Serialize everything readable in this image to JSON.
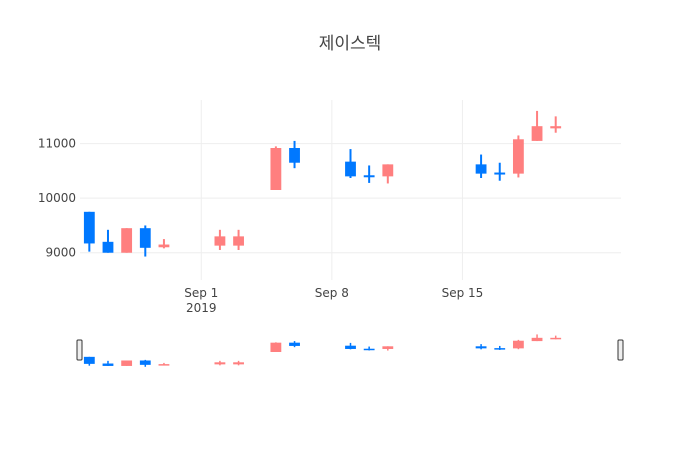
{
  "chart_data": {
    "type": "candlestick",
    "title": "제이스텍",
    "xlabel": "",
    "ylabel": "",
    "x_tick_labels": [
      {
        "label": "Sep 1",
        "sub": "2019",
        "date": "2019-09-01"
      },
      {
        "label": "Sep 8",
        "sub": "",
        "date": "2019-09-08"
      },
      {
        "label": "Sep 15",
        "sub": "",
        "date": "2019-09-15"
      }
    ],
    "y_tick_labels": [
      "9000",
      "10000",
      "11000"
    ],
    "y_ticks": [
      9000,
      10000,
      11000
    ],
    "ylim": [
      8500,
      11800
    ],
    "xlim": [
      "2019-08-25T12:00",
      "2019-09-23T12:00"
    ],
    "colors": {
      "increasing": "#ff7f7f",
      "decreasing": "#0078ff",
      "grid": "#eeeeee"
    },
    "range_slider": true,
    "candles": [
      {
        "date": "2019-08-26",
        "open": 9750,
        "high": 9750,
        "low": 9020,
        "close": 9170
      },
      {
        "date": "2019-08-27",
        "open": 9200,
        "high": 9420,
        "low": 9000,
        "close": 9000
      },
      {
        "date": "2019-08-28",
        "open": 9000,
        "high": 9450,
        "low": 9000,
        "close": 9450
      },
      {
        "date": "2019-08-29",
        "open": 9450,
        "high": 9500,
        "low": 8930,
        "close": 9090
      },
      {
        "date": "2019-08-30",
        "open": 9100,
        "high": 9250,
        "low": 9080,
        "close": 9150
      },
      {
        "date": "2019-09-02",
        "open": 9130,
        "high": 9420,
        "low": 9050,
        "close": 9300
      },
      {
        "date": "2019-09-03",
        "open": 9130,
        "high": 9420,
        "low": 9050,
        "close": 9300
      },
      {
        "date": "2019-09-05",
        "open": 10150,
        "high": 10950,
        "low": 10150,
        "close": 10920
      },
      {
        "date": "2019-09-06",
        "open": 10920,
        "high": 11050,
        "low": 10550,
        "close": 10650
      },
      {
        "date": "2019-09-09",
        "open": 10670,
        "high": 10900,
        "low": 10370,
        "close": 10400
      },
      {
        "date": "2019-09-10",
        "open": 10420,
        "high": 10600,
        "low": 10280,
        "close": 10400
      },
      {
        "date": "2019-09-11",
        "open": 10400,
        "high": 10620,
        "low": 10270,
        "close": 10620
      },
      {
        "date": "2019-09-16",
        "open": 10620,
        "high": 10800,
        "low": 10370,
        "close": 10450
      },
      {
        "date": "2019-09-17",
        "open": 10470,
        "high": 10650,
        "low": 10320,
        "close": 10450
      },
      {
        "date": "2019-09-18",
        "open": 10450,
        "high": 11150,
        "low": 10380,
        "close": 11080
      },
      {
        "date": "2019-09-19",
        "open": 11050,
        "high": 11600,
        "low": 11050,
        "close": 11320
      },
      {
        "date": "2019-09-20",
        "open": 11280,
        "high": 11500,
        "low": 11200,
        "close": 11320
      }
    ]
  }
}
